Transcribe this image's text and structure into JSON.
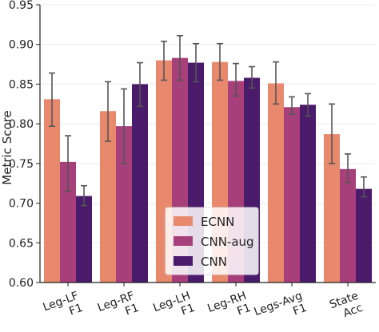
{
  "chart_data": {
    "type": "bar",
    "title": "",
    "xlabel": "",
    "ylabel": "Metric Score",
    "ylim": [
      0.6,
      0.95
    ],
    "yticks": [
      "0.60",
      "0.65",
      "0.70",
      "0.75",
      "0.80",
      "0.85",
      "0.90",
      "0.95"
    ],
    "categories": [
      [
        "Leg-LF",
        "F1"
      ],
      [
        "Leg-RF",
        "F1"
      ],
      [
        "Leg-LH",
        "F1"
      ],
      [
        "Leg-RH",
        "F1"
      ],
      [
        "Legs-Avg",
        "F1"
      ],
      [
        "State",
        "Acc"
      ]
    ],
    "grid": "horizontal",
    "legend_position": "lower-center",
    "series": [
      {
        "name": "ECNN",
        "color": "#e8896e",
        "values": [
          0.831,
          0.816,
          0.88,
          0.878,
          0.851,
          0.787
        ],
        "err_low": [
          0.797,
          0.778,
          0.855,
          0.855,
          0.825,
          0.75
        ],
        "err_high": [
          0.864,
          0.853,
          0.904,
          0.901,
          0.878,
          0.825
        ]
      },
      {
        "name": "CNN-aug",
        "color": "#a63f7a",
        "values": [
          0.752,
          0.797,
          0.883,
          0.854,
          0.821,
          0.743
        ],
        "err_low": [
          0.715,
          0.75,
          0.855,
          0.835,
          0.812,
          0.726
        ],
        "err_high": [
          0.785,
          0.844,
          0.911,
          0.876,
          0.834,
          0.762
        ]
      },
      {
        "name": "CNN",
        "color": "#4a1a6b",
        "values": [
          0.709,
          0.85,
          0.877,
          0.858,
          0.824,
          0.718
        ],
        "err_low": [
          0.697,
          0.822,
          0.853,
          0.845,
          0.81,
          0.708
        ],
        "err_high": [
          0.722,
          0.877,
          0.901,
          0.872,
          0.838,
          0.733
        ]
      }
    ]
  }
}
